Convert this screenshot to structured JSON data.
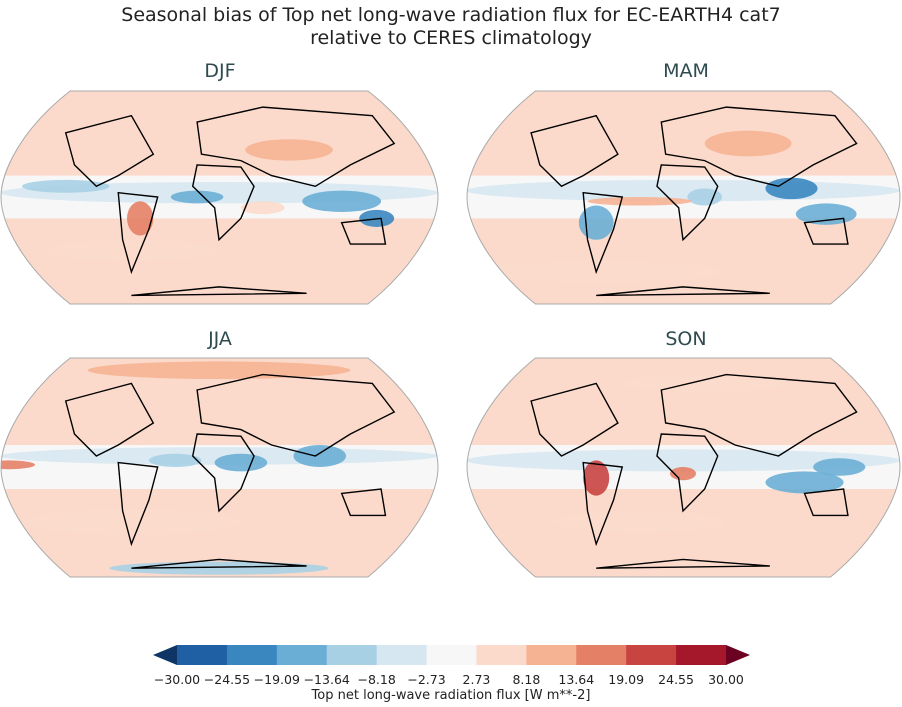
{
  "title": {
    "line1": "Seasonal bias of Top net long-wave radiation flux for EC-EARTH4 cat7",
    "line2": "relative to CERES climatology"
  },
  "panels": [
    {
      "label": "DJF"
    },
    {
      "label": "MAM"
    },
    {
      "label": "JJA"
    },
    {
      "label": "SON"
    }
  ],
  "colorbar": {
    "label": "Top net long-wave radiation flux [W m**-2]",
    "ticks": [
      "−30.00",
      "−24.55",
      "−19.09",
      "−13.64",
      "−8.18",
      "−2.73",
      "2.73",
      "8.18",
      "13.64",
      "19.09",
      "24.55",
      "30.00"
    ],
    "colors": [
      "#1f5fa3",
      "#3a87c0",
      "#6aaed5",
      "#a8d0e5",
      "#d6e7f1",
      "#f7f7f7",
      "#fbdacb",
      "#f6b394",
      "#e48066",
      "#c84441",
      "#a5172a"
    ],
    "under_color": "#0f3566",
    "over_color": "#6b0222",
    "extend": "both"
  }
}
